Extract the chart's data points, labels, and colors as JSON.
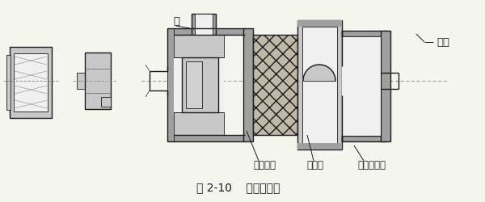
{
  "title": "图 2-10    挠性联轴器",
  "label_pump": "泵",
  "label_motor": "电机",
  "label_pump_coupling": "泵联轴器",
  "label_rubber": "橡胶件",
  "label_motor_coupling": "电机联轴器",
  "bg_color": "#f5f5f0",
  "line_color": "#1a1a1a",
  "gray_light": "#c8c8c8",
  "gray_mid": "#a0a0a0",
  "gray_dark": "#787878",
  "white": "#f0f0f0",
  "title_fontsize": 10,
  "label_fontsize": 8.5
}
